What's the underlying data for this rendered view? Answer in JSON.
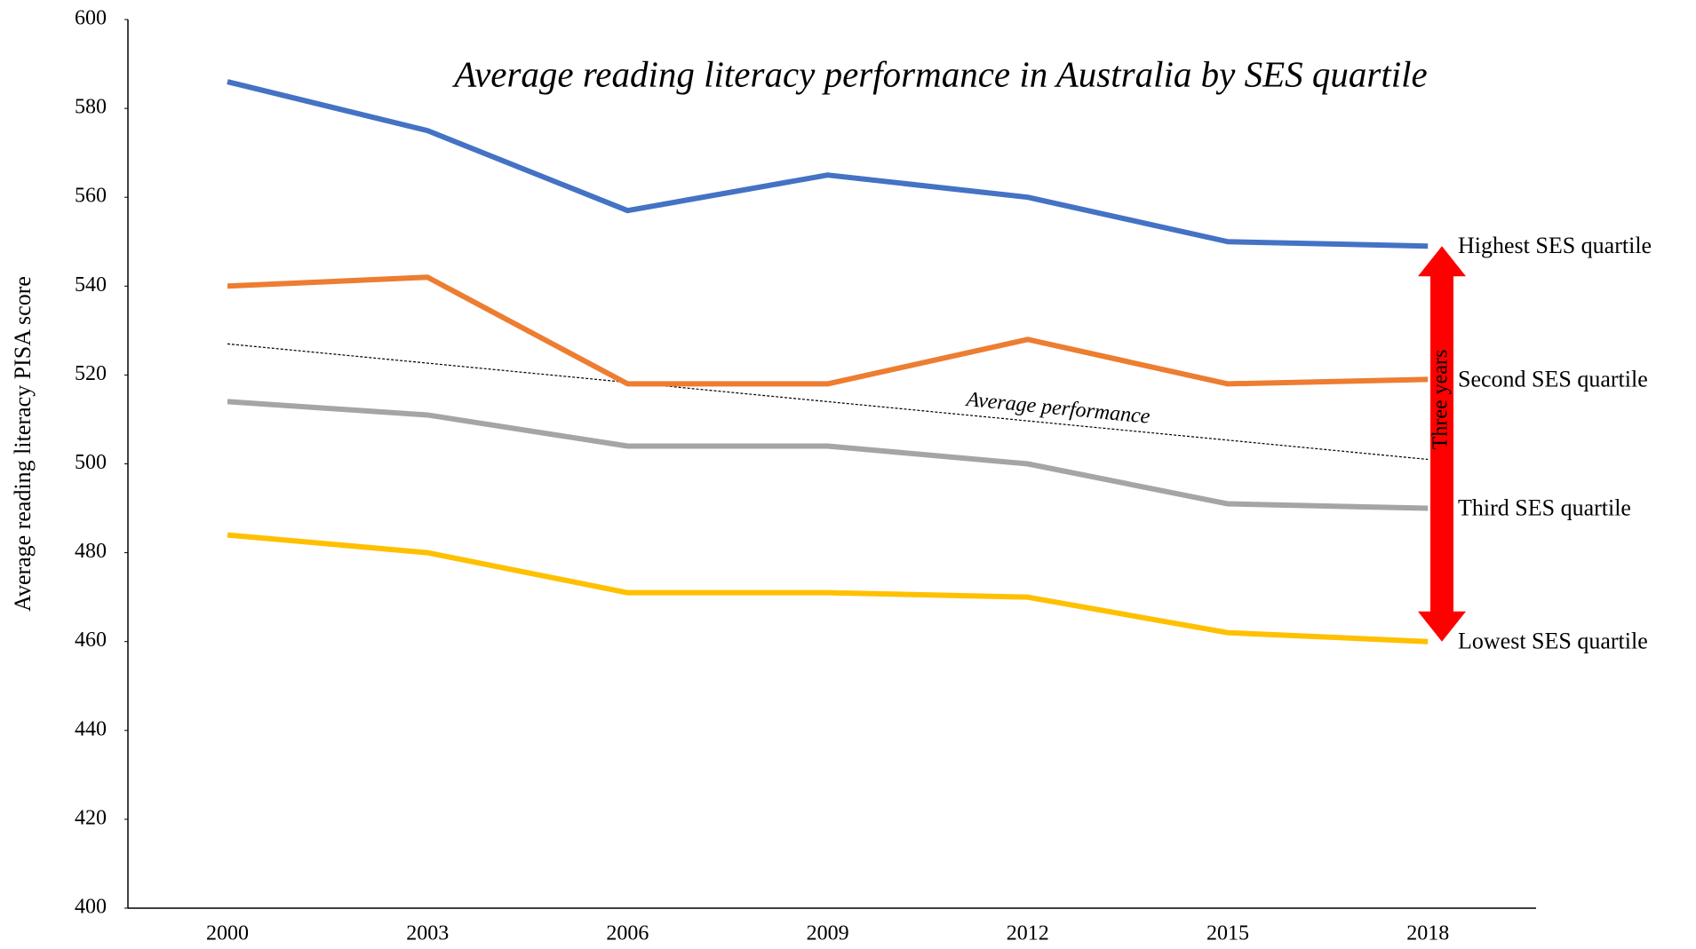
{
  "chart_data": {
    "type": "line",
    "title": "Average reading literacy performance in Australia by SES quartile",
    "y_label": "Average reading literacy PISA score",
    "categories": [
      "2000",
      "2003",
      "2006",
      "2009",
      "2012",
      "2015",
      "2018"
    ],
    "series": [
      {
        "name": "Highest SES quartile",
        "color": "#4472c4",
        "values": [
          586,
          575,
          557,
          565,
          560,
          550,
          549
        ]
      },
      {
        "name": "Second SES quartile",
        "color": "#ed7d31",
        "values": [
          540,
          542,
          518,
          518,
          528,
          518,
          519
        ]
      },
      {
        "name": "Third SES quartile",
        "color": "#a5a5a5",
        "values": [
          514,
          511,
          504,
          504,
          500,
          491,
          490
        ]
      },
      {
        "name": "Lowest SES quartile",
        "color": "#ffc000",
        "values": [
          484,
          480,
          471,
          471,
          470,
          462,
          460
        ]
      }
    ],
    "trend": {
      "label": "Average performance",
      "values": [
        527,
        501
      ]
    },
    "range_arrow": {
      "text": "Three years",
      "from": 549,
      "to": 460,
      "color": "#ff0000"
    },
    "ylim": [
      400,
      600
    ],
    "yticks": [
      400,
      420,
      440,
      460,
      480,
      500,
      520,
      540,
      560,
      580,
      600
    ],
    "grid": false
  }
}
